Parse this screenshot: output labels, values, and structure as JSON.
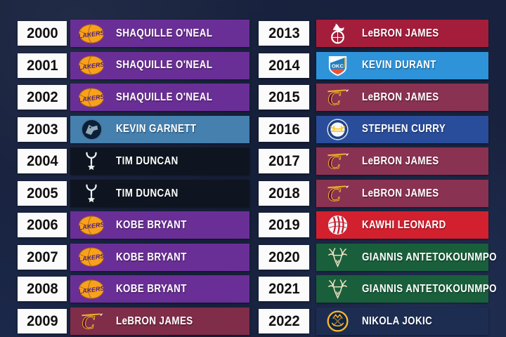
{
  "canvas": {
    "background_color": "#18223e"
  },
  "columns": [
    {
      "side": "left",
      "rows": [
        {
          "year": "2000",
          "team": "lakers",
          "player": "SHAQUILLE O'NEAL",
          "bar_color": "#6a2f96"
        },
        {
          "year": "2001",
          "team": "lakers",
          "player": "SHAQUILLE O'NEAL",
          "bar_color": "#6a2f96"
        },
        {
          "year": "2002",
          "team": "lakers",
          "player": "SHAQUILLE O'NEAL",
          "bar_color": "#6a2f96"
        },
        {
          "year": "2003",
          "team": "timberwolves",
          "player": "KEVIN GARNETT",
          "bar_color": "#4580af"
        },
        {
          "year": "2004",
          "team": "spurs",
          "player": "TIM DUNCAN",
          "bar_color": "#0e1520"
        },
        {
          "year": "2005",
          "team": "spurs",
          "player": "TIM DUNCAN",
          "bar_color": "#0e1520"
        },
        {
          "year": "2006",
          "team": "lakers",
          "player": "KOBE BRYANT",
          "bar_color": "#6a2f96"
        },
        {
          "year": "2007",
          "team": "lakers",
          "player": "KOBE BRYANT",
          "bar_color": "#6a2f96"
        },
        {
          "year": "2008",
          "team": "lakers",
          "player": "KOBE BRYANT",
          "bar_color": "#6a2f96"
        },
        {
          "year": "2009",
          "team": "cavaliers",
          "player": "LeBRON JAMES",
          "bar_color": "#7f2d49"
        }
      ]
    },
    {
      "side": "right",
      "rows": [
        {
          "year": "2013",
          "team": "heat",
          "player": "LeBRON JAMES",
          "bar_color": "#a41e3b"
        },
        {
          "year": "2014",
          "team": "thunder",
          "player": "KEVIN DURANT",
          "bar_color": "#2e93d9"
        },
        {
          "year": "2015",
          "team": "cavaliers",
          "player": "LeBRON JAMES",
          "bar_color": "#8a3252"
        },
        {
          "year": "2016",
          "team": "warriors",
          "player": "STEPHEN CURRY",
          "bar_color": "#2a4d9b"
        },
        {
          "year": "2017",
          "team": "cavaliers",
          "player": "LeBRON JAMES",
          "bar_color": "#8a3252"
        },
        {
          "year": "2018",
          "team": "cavaliers",
          "player": "LeBRON JAMES",
          "bar_color": "#8a3252"
        },
        {
          "year": "2019",
          "team": "raptors",
          "player": "KAWHI LEONARD",
          "bar_color": "#d3202f"
        },
        {
          "year": "2020",
          "team": "bucks",
          "player": "GIANNIS ANTETOKOUNMPO",
          "bar_color": "#1a5f3b"
        },
        {
          "year": "2021",
          "team": "bucks",
          "player": "GIANNIS ANTETOKOUNMPO",
          "bar_color": "#1a5f3b"
        },
        {
          "year": "2022",
          "team": "nuggets",
          "player": "NIKOLA JOKIC",
          "bar_color": "#1d2d52"
        }
      ]
    }
  ]
}
